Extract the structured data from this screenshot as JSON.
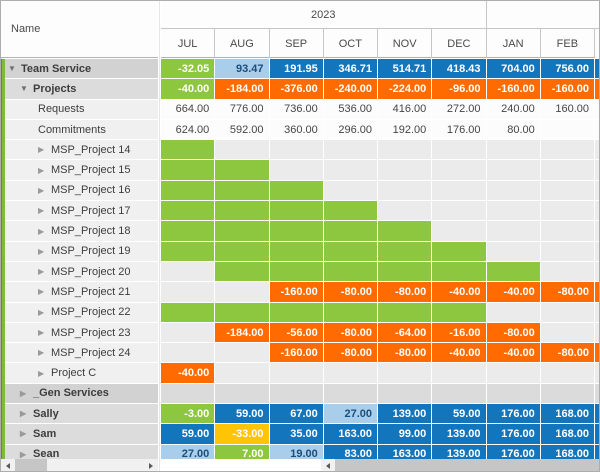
{
  "header": {
    "name_column_label": "Name",
    "year_groups": [
      {
        "label": "2023",
        "span": 6
      },
      {
        "label": "",
        "span": 2
      }
    ],
    "months": [
      "JUL",
      "AUG",
      "SEP",
      "OCT",
      "NOV",
      "DEC",
      "JAN",
      "FEB"
    ]
  },
  "colors": {
    "surplus_green": "#8DC63F",
    "allocated_blue": "#1375BC",
    "partial_light_blue": "#A9CEEC",
    "overload_orange": "#FF6B00",
    "warning_yellow": "#FFC405",
    "group_row_gray": "#D2D2D2",
    "leaf_row_gray": "#F0F0F0"
  },
  "rows": [
    {
      "name": "Team Service",
      "level": 0,
      "arrow": "down",
      "kind": "group",
      "cells": [
        {
          "v": "-32.05",
          "c": "g"
        },
        {
          "v": "93.47",
          "c": "lb"
        },
        {
          "v": "191.95",
          "c": "b"
        },
        {
          "v": "346.71",
          "c": "b"
        },
        {
          "v": "514.71",
          "c": "b"
        },
        {
          "v": "418.43",
          "c": "b"
        },
        {
          "v": "704.00",
          "c": "b"
        },
        {
          "v": "756.00",
          "c": "b"
        }
      ],
      "sliver": "b"
    },
    {
      "name": "Projects",
      "level": 1,
      "arrow": "down",
      "kind": "sub",
      "cells": [
        {
          "v": "-40.00",
          "c": "g"
        },
        {
          "v": "-184.00",
          "c": "o"
        },
        {
          "v": "-376.00",
          "c": "o"
        },
        {
          "v": "-240.00",
          "c": "o"
        },
        {
          "v": "-224.00",
          "c": "o"
        },
        {
          "v": "-96.00",
          "c": "o"
        },
        {
          "v": "-160.00",
          "c": "o"
        },
        {
          "v": "-160.00",
          "c": "o"
        }
      ],
      "sliver": "o"
    },
    {
      "name": "Requests",
      "level": 2,
      "arrow": "none",
      "kind": "leaf",
      "cells": [
        {
          "v": "664.00",
          "c": "w"
        },
        {
          "v": "776.00",
          "c": "w"
        },
        {
          "v": "736.00",
          "c": "w"
        },
        {
          "v": "536.00",
          "c": "w"
        },
        {
          "v": "416.00",
          "c": "w"
        },
        {
          "v": "272.00",
          "c": "w"
        },
        {
          "v": "240.00",
          "c": "w"
        },
        {
          "v": "160.00",
          "c": "w"
        }
      ],
      "sliver": "w"
    },
    {
      "name": "Commitments",
      "level": 2,
      "arrow": "none",
      "kind": "leaf",
      "cells": [
        {
          "v": "624.00",
          "c": "w"
        },
        {
          "v": "592.00",
          "c": "w"
        },
        {
          "v": "360.00",
          "c": "w"
        },
        {
          "v": "296.00",
          "c": "w"
        },
        {
          "v": "192.00",
          "c": "w"
        },
        {
          "v": "176.00",
          "c": "w"
        },
        {
          "v": "80.00",
          "c": "w"
        },
        {
          "v": "",
          "c": "w"
        }
      ],
      "sliver": "w"
    },
    {
      "name": "MSP_Project 14",
      "level": 2,
      "arrow": "right",
      "kind": "leaf",
      "cells": [
        {
          "v": "",
          "c": "g"
        },
        {
          "v": "",
          "c": "e"
        },
        {
          "v": "",
          "c": "e"
        },
        {
          "v": "",
          "c": "e"
        },
        {
          "v": "",
          "c": "e"
        },
        {
          "v": "",
          "c": "e"
        },
        {
          "v": "",
          "c": "e"
        },
        {
          "v": "",
          "c": "e"
        }
      ],
      "sliver": "e"
    },
    {
      "name": "MSP_Project 15",
      "level": 2,
      "arrow": "right",
      "kind": "leaf",
      "cells": [
        {
          "v": "",
          "c": "g"
        },
        {
          "v": "",
          "c": "g"
        },
        {
          "v": "",
          "c": "e"
        },
        {
          "v": "",
          "c": "e"
        },
        {
          "v": "",
          "c": "e"
        },
        {
          "v": "",
          "c": "e"
        },
        {
          "v": "",
          "c": "e"
        },
        {
          "v": "",
          "c": "e"
        }
      ],
      "sliver": "e"
    },
    {
      "name": "MSP_Project 16",
      "level": 2,
      "arrow": "right",
      "kind": "leaf",
      "cells": [
        {
          "v": "",
          "c": "g"
        },
        {
          "v": "",
          "c": "g"
        },
        {
          "v": "",
          "c": "g"
        },
        {
          "v": "",
          "c": "e"
        },
        {
          "v": "",
          "c": "e"
        },
        {
          "v": "",
          "c": "e"
        },
        {
          "v": "",
          "c": "e"
        },
        {
          "v": "",
          "c": "e"
        }
      ],
      "sliver": "e"
    },
    {
      "name": "MSP_Project 17",
      "level": 2,
      "arrow": "right",
      "kind": "leaf",
      "cells": [
        {
          "v": "",
          "c": "g"
        },
        {
          "v": "",
          "c": "g"
        },
        {
          "v": "",
          "c": "g"
        },
        {
          "v": "",
          "c": "g"
        },
        {
          "v": "",
          "c": "e"
        },
        {
          "v": "",
          "c": "e"
        },
        {
          "v": "",
          "c": "e"
        },
        {
          "v": "",
          "c": "e"
        }
      ],
      "sliver": "e"
    },
    {
      "name": "MSP_Project 18",
      "level": 2,
      "arrow": "right",
      "kind": "leaf",
      "cells": [
        {
          "v": "",
          "c": "g"
        },
        {
          "v": "",
          "c": "g"
        },
        {
          "v": "",
          "c": "g"
        },
        {
          "v": "",
          "c": "g"
        },
        {
          "v": "",
          "c": "g"
        },
        {
          "v": "",
          "c": "e"
        },
        {
          "v": "",
          "c": "e"
        },
        {
          "v": "",
          "c": "e"
        }
      ],
      "sliver": "e"
    },
    {
      "name": "MSP_Project 19",
      "level": 2,
      "arrow": "right",
      "kind": "leaf",
      "cells": [
        {
          "v": "",
          "c": "g"
        },
        {
          "v": "",
          "c": "g"
        },
        {
          "v": "",
          "c": "g"
        },
        {
          "v": "",
          "c": "g"
        },
        {
          "v": "",
          "c": "g"
        },
        {
          "v": "",
          "c": "g"
        },
        {
          "v": "",
          "c": "e"
        },
        {
          "v": "",
          "c": "e"
        }
      ],
      "sliver": "e"
    },
    {
      "name": "MSP_Project 20",
      "level": 2,
      "arrow": "right",
      "kind": "leaf",
      "cells": [
        {
          "v": "",
          "c": "e"
        },
        {
          "v": "",
          "c": "g"
        },
        {
          "v": "",
          "c": "g"
        },
        {
          "v": "",
          "c": "g"
        },
        {
          "v": "",
          "c": "g"
        },
        {
          "v": "",
          "c": "g"
        },
        {
          "v": "",
          "c": "g"
        },
        {
          "v": "",
          "c": "e"
        }
      ],
      "sliver": "e"
    },
    {
      "name": "MSP_Project 21",
      "level": 2,
      "arrow": "right",
      "kind": "leaf",
      "cells": [
        {
          "v": "",
          "c": "e"
        },
        {
          "v": "",
          "c": "e"
        },
        {
          "v": "-160.00",
          "c": "o"
        },
        {
          "v": "-80.00",
          "c": "o"
        },
        {
          "v": "-80.00",
          "c": "o"
        },
        {
          "v": "-40.00",
          "c": "o"
        },
        {
          "v": "-40.00",
          "c": "o"
        },
        {
          "v": "-80.00",
          "c": "o"
        }
      ],
      "sliver": "o"
    },
    {
      "name": "MSP_Project 22",
      "level": 2,
      "arrow": "right",
      "kind": "leaf",
      "cells": [
        {
          "v": "",
          "c": "g"
        },
        {
          "v": "",
          "c": "g"
        },
        {
          "v": "",
          "c": "g"
        },
        {
          "v": "",
          "c": "g"
        },
        {
          "v": "",
          "c": "g"
        },
        {
          "v": "",
          "c": "g"
        },
        {
          "v": "",
          "c": "e"
        },
        {
          "v": "",
          "c": "e"
        }
      ],
      "sliver": "e"
    },
    {
      "name": "MSP_Project 23",
      "level": 2,
      "arrow": "right",
      "kind": "leaf",
      "cells": [
        {
          "v": "",
          "c": "e"
        },
        {
          "v": "-184.00",
          "c": "o"
        },
        {
          "v": "-56.00",
          "c": "o"
        },
        {
          "v": "-80.00",
          "c": "o"
        },
        {
          "v": "-64.00",
          "c": "o"
        },
        {
          "v": "-16.00",
          "c": "o"
        },
        {
          "v": "-80.00",
          "c": "o"
        },
        {
          "v": "",
          "c": "e"
        }
      ],
      "sliver": "e"
    },
    {
      "name": "MSP_Project 24",
      "level": 2,
      "arrow": "right",
      "kind": "leaf",
      "cells": [
        {
          "v": "",
          "c": "e"
        },
        {
          "v": "",
          "c": "e"
        },
        {
          "v": "-160.00",
          "c": "o"
        },
        {
          "v": "-80.00",
          "c": "o"
        },
        {
          "v": "-80.00",
          "c": "o"
        },
        {
          "v": "-40.00",
          "c": "o"
        },
        {
          "v": "-40.00",
          "c": "o"
        },
        {
          "v": "-80.00",
          "c": "o"
        }
      ],
      "sliver": "o"
    },
    {
      "name": "Project C",
      "level": 2,
      "arrow": "right",
      "kind": "leaf",
      "cells": [
        {
          "v": "-40.00",
          "c": "o"
        },
        {
          "v": "",
          "c": "e"
        },
        {
          "v": "",
          "c": "e"
        },
        {
          "v": "",
          "c": "e"
        },
        {
          "v": "",
          "c": "e"
        },
        {
          "v": "",
          "c": "e"
        },
        {
          "v": "",
          "c": "e"
        },
        {
          "v": "",
          "c": "e"
        }
      ],
      "sliver": "e"
    },
    {
      "name": "_Gen Services",
      "level": 1,
      "arrow": "right",
      "kind": "group",
      "cells": [
        {
          "v": "",
          "c": "ge"
        },
        {
          "v": "",
          "c": "ge"
        },
        {
          "v": "",
          "c": "ge"
        },
        {
          "v": "",
          "c": "ge"
        },
        {
          "v": "",
          "c": "ge"
        },
        {
          "v": "",
          "c": "ge"
        },
        {
          "v": "",
          "c": "ge"
        },
        {
          "v": "",
          "c": "ge"
        }
      ],
      "sliver": "ge"
    },
    {
      "name": "Sally",
      "level": 1,
      "arrow": "right",
      "kind": "sub",
      "cells": [
        {
          "v": "-3.00",
          "c": "g"
        },
        {
          "v": "59.00",
          "c": "b"
        },
        {
          "v": "67.00",
          "c": "b"
        },
        {
          "v": "27.00",
          "c": "lb"
        },
        {
          "v": "139.00",
          "c": "b"
        },
        {
          "v": "59.00",
          "c": "b"
        },
        {
          "v": "176.00",
          "c": "b"
        },
        {
          "v": "168.00",
          "c": "b"
        }
      ],
      "sliver": "b"
    },
    {
      "name": "Sam",
      "level": 1,
      "arrow": "right",
      "kind": "sub",
      "cells": [
        {
          "v": "59.00",
          "c": "b"
        },
        {
          "v": "-33.00",
          "c": "y"
        },
        {
          "v": "35.00",
          "c": "b"
        },
        {
          "v": "163.00",
          "c": "b"
        },
        {
          "v": "99.00",
          "c": "b"
        },
        {
          "v": "139.00",
          "c": "b"
        },
        {
          "v": "176.00",
          "c": "b"
        },
        {
          "v": "168.00",
          "c": "b"
        }
      ],
      "sliver": "b"
    },
    {
      "name": "Sean",
      "level": 1,
      "arrow": "right",
      "kind": "sub",
      "cells": [
        {
          "v": "27.00",
          "c": "lb"
        },
        {
          "v": "7.00",
          "c": "g"
        },
        {
          "v": "19.00",
          "c": "lb"
        },
        {
          "v": "83.00",
          "c": "b"
        },
        {
          "v": "163.00",
          "c": "b"
        },
        {
          "v": "139.00",
          "c": "b"
        },
        {
          "v": "176.00",
          "c": "b"
        },
        {
          "v": "168.00",
          "c": "b"
        }
      ],
      "sliver": "b"
    }
  ],
  "scrollbars": {
    "left_pane": {
      "icons": [
        "scroll-left-arrow-icon",
        "scroll-right-arrow-icon"
      ]
    },
    "right_pane": {
      "icons": [
        "scroll-left-arrow-icon"
      ]
    }
  }
}
